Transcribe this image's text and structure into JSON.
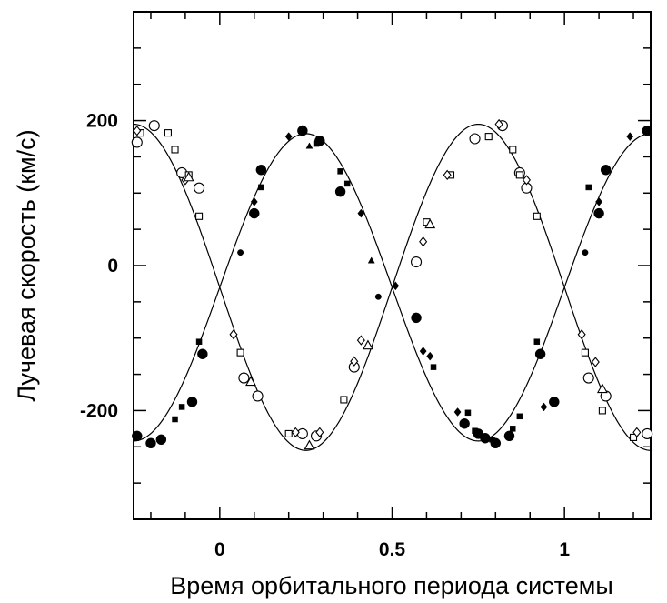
{
  "chart_data": {
    "type": "scatter",
    "title": "",
    "xlabel": "Время орбитального периода системы",
    "ylabel": "Лучевая скорость (км/с)",
    "xlim": [
      -0.25,
      1.25
    ],
    "ylim": [
      -350,
      350
    ],
    "xticks": [
      0,
      0.5,
      1
    ],
    "xtick_labels": [
      "0",
      "0.5",
      "1"
    ],
    "xminor_step": 0.1,
    "yticks": [
      200,
      0,
      -200
    ],
    "ytick_labels": [
      "200",
      "0",
      "-200"
    ],
    "yminor_step": 50,
    "grid": false,
    "legend": "none",
    "fit_curves": [
      {
        "name": "",
        "gamma": -30,
        "amplitude": 212,
        "phase_offset": 0,
        "sign": 1
      },
      {
        "name": "",
        "gamma": -30,
        "amplitude": 225,
        "phase_offset": 0,
        "sign": -1
      }
    ],
    "series": [
      {
        "name": "",
        "marker": "filled-circle-large",
        "x": [
          -0.24,
          -0.2,
          -0.17,
          -0.08,
          -0.05,
          0.1,
          0.12,
          0.24,
          0.29,
          0.35,
          0.57,
          0.71,
          0.75,
          0.77,
          0.8,
          0.84,
          0.93,
          0.97,
          1.1,
          1.12,
          1.24
        ],
        "y": [
          -235,
          -245,
          -240,
          -188,
          -122,
          72,
          132,
          186,
          172,
          102,
          -72,
          -218,
          -232,
          -238,
          -245,
          -235,
          -122,
          -188,
          72,
          132,
          186
        ]
      },
      {
        "name": "",
        "marker": "filled-circle-small",
        "x": [
          0.06,
          0.46,
          0.93,
          1.06
        ],
        "y": [
          18,
          -43,
          -123,
          18
        ]
      },
      {
        "name": "",
        "marker": "filled-square",
        "x": [
          -0.13,
          -0.11,
          -0.06,
          0.12,
          0.28,
          0.35,
          0.37,
          0.62,
          0.72,
          0.74,
          0.79,
          0.85,
          0.87,
          0.92,
          1.07,
          1.12
        ],
        "y": [
          -212,
          -195,
          -105,
          108,
          168,
          130,
          113,
          -140,
          -203,
          -228,
          -240,
          -225,
          -208,
          -105,
          108,
          132
        ]
      },
      {
        "name": "",
        "marker": "filled-diamond",
        "x": [
          0.1,
          0.2,
          0.24,
          0.41,
          0.51,
          0.59,
          0.61,
          0.69,
          0.94,
          1.1,
          1.19
        ],
        "y": [
          88,
          178,
          188,
          72,
          -28,
          -118,
          -125,
          -202,
          -195,
          88,
          178
        ]
      },
      {
        "name": "",
        "marker": "filled-triangle",
        "x": [
          0.26,
          0.44
        ],
        "y": [
          165,
          7
        ]
      },
      {
        "name": "",
        "marker": "open-circle",
        "x": [
          -0.24,
          -0.19,
          -0.11,
          -0.06,
          0.07,
          0.11,
          0.24,
          0.28,
          0.39,
          0.57,
          0.74,
          0.82,
          0.87,
          0.89,
          1.07,
          1.12,
          1.24
        ],
        "y": [
          170,
          193,
          128,
          107,
          -155,
          -180,
          -232,
          -235,
          -140,
          5,
          175,
          193,
          128,
          107,
          -155,
          -180,
          -232
        ]
      },
      {
        "name": "",
        "marker": "open-square",
        "x": [
          -0.23,
          -0.15,
          -0.13,
          -0.09,
          -0.06,
          0.06,
          0.2,
          0.36,
          0.6,
          0.67,
          0.78,
          0.85,
          0.87,
          0.92,
          1.06,
          1.11,
          1.2
        ],
        "y": [
          183,
          183,
          160,
          125,
          68,
          -120,
          -232,
          -185,
          60,
          125,
          178,
          160,
          125,
          68,
          -120,
          -200,
          -237
        ]
      },
      {
        "name": "",
        "marker": "open-diamond",
        "x": [
          -0.24,
          -0.1,
          0.04,
          0.22,
          0.29,
          0.39,
          0.41,
          0.59,
          0.66,
          0.81,
          0.89,
          1.05,
          1.09,
          1.21
        ],
        "y": [
          186,
          118,
          -95,
          -230,
          -230,
          -132,
          -103,
          33,
          125,
          195,
          118,
          -95,
          -133,
          -230
        ]
      },
      {
        "name": "",
        "marker": "open-triangle",
        "x": [
          -0.09,
          0.09,
          0.26,
          0.43,
          0.61,
          1.11
        ],
        "y": [
          122,
          -160,
          -248,
          -110,
          57,
          -170
        ]
      }
    ]
  }
}
